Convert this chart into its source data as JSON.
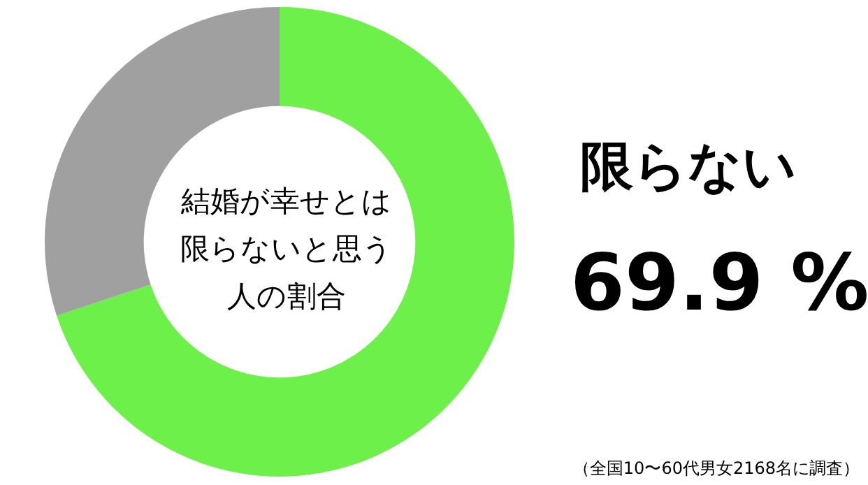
{
  "chart_data": {
    "type": "donut",
    "title": "結婚が幸せとは限らないと思う人の割合",
    "categories": [
      "限らない",
      null
    ],
    "values": [
      69.9,
      30.1
    ],
    "colors": [
      "#6ef04a",
      "#a0a0a0"
    ],
    "value_labels": [
      "69.9 %",
      null
    ],
    "annotations": [
      "（全国10〜60代男女2168名に調査）"
    ]
  }
}
